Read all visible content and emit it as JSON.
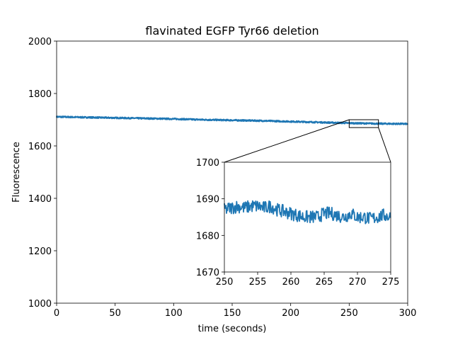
{
  "chart_data": {
    "type": "line",
    "title": "flavinated EGFP Tyr66 deletion",
    "xlabel": "time (seconds)",
    "ylabel": "Fluorescence",
    "xlim": [
      0,
      300
    ],
    "ylim": [
      1000,
      2000
    ],
    "xticks": [
      "0",
      "50",
      "100",
      "150",
      "200",
      "250",
      "300"
    ],
    "yticks": [
      "1000",
      "1200",
      "1400",
      "1600",
      "1800",
      "2000"
    ],
    "grid": false,
    "series_color": "#1f77b4",
    "series": [
      {
        "x": [
          0,
          25,
          50,
          75,
          100,
          125,
          150,
          175,
          200,
          225,
          250,
          275,
          300
        ],
        "y": [
          1711,
          1709,
          1707,
          1705,
          1703,
          1700,
          1698,
          1696,
          1693,
          1690,
          1687,
          1685,
          1684
        ]
      }
    ],
    "inset": {
      "type": "line",
      "xlim": [
        250,
        275
      ],
      "ylim": [
        1670,
        1700
      ],
      "xticks": [
        "250",
        "255",
        "260",
        "265",
        "270",
        "275"
      ],
      "yticks": [
        "1670",
        "1680",
        "1690",
        "1700"
      ],
      "series": [
        {
          "x": [
            250,
            251,
            252,
            253,
            254,
            255,
            256,
            257,
            258,
            259,
            260,
            261,
            262,
            263,
            264,
            265,
            266,
            267,
            268,
            269,
            270,
            271,
            272,
            273,
            274,
            275
          ],
          "y": [
            1687,
            1687.5,
            1688,
            1687.5,
            1688,
            1688,
            1687.5,
            1688,
            1687,
            1686.5,
            1686,
            1685.5,
            1685,
            1685,
            1685,
            1686,
            1686,
            1685.5,
            1685,
            1686,
            1685,
            1685,
            1684.5,
            1685,
            1685.5,
            1685
          ]
        }
      ]
    }
  }
}
